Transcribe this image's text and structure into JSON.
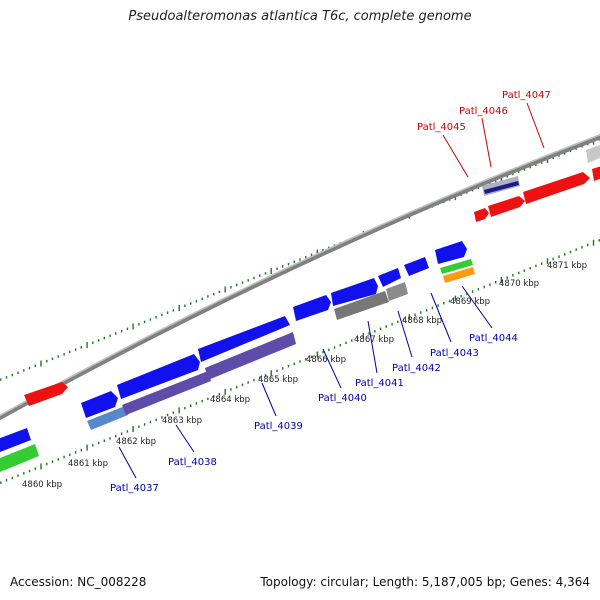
{
  "title": "Pseudoalteromonas atlantica T6c, complete genome",
  "footer": {
    "accession": "Accession: NC_008228",
    "summary": "Topology: circular; Length: 5,187,005 bp; Genes: 4,364"
  },
  "colors": {
    "forward_strand": "#ee1111",
    "reverse_strand": "#1111ee",
    "reverse_strand_alt": "#5e4da8",
    "gray_feature": "#777777",
    "light_gray_feature": "#c8c8c8",
    "green_feature": "#33cc33",
    "orange_feature": "#ff9911",
    "forward_label": "#cc0000",
    "reverse_label": "#0000aa",
    "tick": "#1a7a1a",
    "backbone": "#888888"
  },
  "scale_labels": [
    "4860 kbp",
    "4861 kbp",
    "4862 kbp",
    "4863 kbp",
    "4864 kbp",
    "4865 kbp",
    "4866 kbp",
    "4867 kbp",
    "4868 kbp",
    "4869 kbp",
    "4870 kbp",
    "4871 kbp"
  ],
  "forward_genes": [
    {
      "id": "Patl_4045",
      "label": "Patl_4045"
    },
    {
      "id": "Patl_4046",
      "label": "Patl_4046"
    },
    {
      "id": "Patl_4047",
      "label": "Patl_4047"
    }
  ],
  "reverse_genes": [
    {
      "id": "Patl_4037",
      "label": "Patl_4037"
    },
    {
      "id": "Patl_4038",
      "label": "Patl_4038"
    },
    {
      "id": "Patl_4039",
      "label": "Patl_4039"
    },
    {
      "id": "Patl_4040",
      "label": "Patl_4040"
    },
    {
      "id": "Patl_4041",
      "label": "Patl_4041"
    },
    {
      "id": "Patl_4042",
      "label": "Patl_4042"
    },
    {
      "id": "Patl_4043",
      "label": "Patl_4043"
    },
    {
      "id": "Patl_4044",
      "label": "Patl_4044"
    }
  ]
}
